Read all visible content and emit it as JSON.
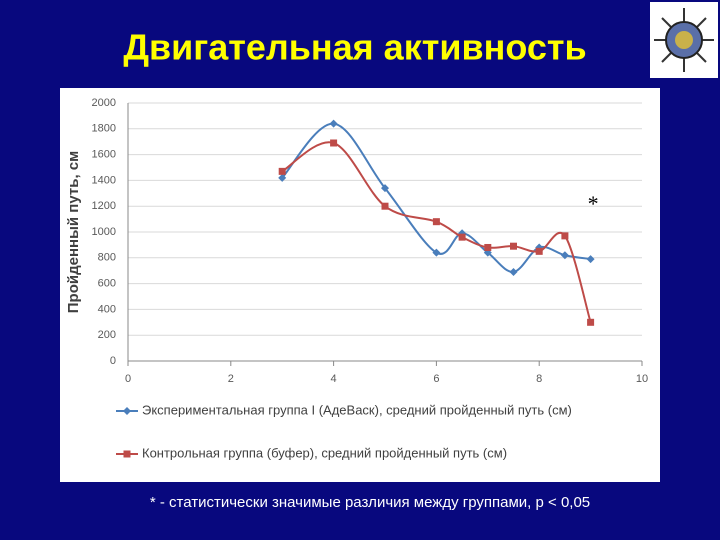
{
  "title": "Двигательная активность",
  "footnote": "* - статистически значимые различия между группами, р < 0,05",
  "chart_data": {
    "type": "line",
    "y_label": "Пройденный путь, см",
    "x": [
      3,
      4,
      5,
      6,
      6.5,
      7,
      7.5,
      8,
      8.5,
      9
    ],
    "series": [
      {
        "name": "Экспериментальная группа I (АдеВаск), средний пройденный путь (см)",
        "color": "#4a7ebb",
        "marker": "diamond",
        "values": [
          1420,
          1840,
          1340,
          840,
          990,
          840,
          690,
          880,
          820,
          790
        ]
      },
      {
        "name": "Контрольная группа  (буфер), средний пройденный путь (см)",
        "color": "#be4b48",
        "marker": "square",
        "values": [
          1470,
          1690,
          1200,
          1080,
          960,
          880,
          890,
          850,
          970,
          300
        ]
      }
    ],
    "annotation": {
      "text": "*",
      "x": 9.05,
      "y": 1200
    },
    "xlim": [
      0,
      10
    ],
    "xticks": [
      0,
      2,
      4,
      6,
      8,
      10
    ],
    "ylim": [
      0,
      2000
    ],
    "yticks": [
      0,
      200,
      400,
      600,
      800,
      1000,
      1200,
      1400,
      1600,
      1800,
      2000
    ],
    "grid": true,
    "legend": "bottom"
  }
}
